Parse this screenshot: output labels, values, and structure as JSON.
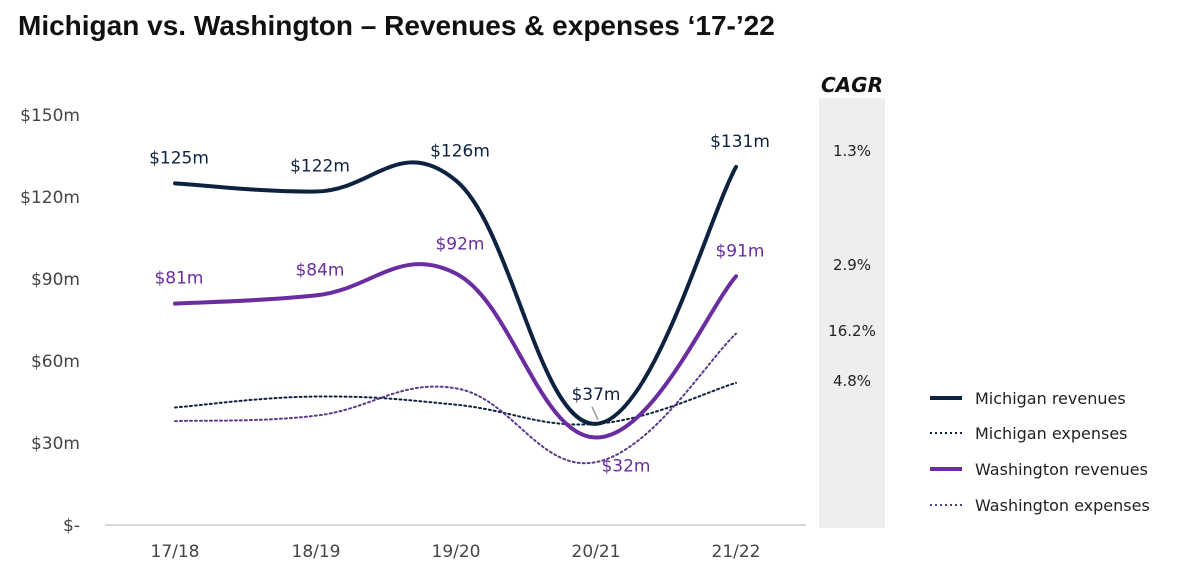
{
  "chart_data": {
    "type": "line",
    "title": "Michigan vs. Washington – Revenues & expenses ‘17-’22",
    "categories": [
      "17/18",
      "18/19",
      "19/20",
      "20/21",
      "21/22"
    ],
    "ylim": [
      0,
      150
    ],
    "yticks": [
      {
        "value": 0,
        "label": "$-"
      },
      {
        "value": 30,
        "label": "$30m"
      },
      {
        "value": 60,
        "label": "$60m"
      },
      {
        "value": 90,
        "label": "$90m"
      },
      {
        "value": 120,
        "label": "$120m"
      },
      {
        "value": 150,
        "label": "$150m"
      }
    ],
    "xlabel": "",
    "ylabel": "",
    "series": [
      {
        "name": "Michigan revenues",
        "style": "solid",
        "color": "#0d2240",
        "values": [
          125,
          122,
          126,
          37,
          131
        ],
        "labels": [
          "$125m",
          "$122m",
          "$126m",
          "$37m",
          "$131m"
        ]
      },
      {
        "name": "Michigan expenses",
        "style": "dotted",
        "color": "#0d2240",
        "values": [
          43,
          47,
          44,
          37,
          52
        ],
        "labels": []
      },
      {
        "name": "Washington revenues",
        "style": "solid",
        "color": "#6a2c9e",
        "values": [
          81,
          84,
          92,
          32,
          91
        ],
        "labels": [
          "$81m",
          "$84m",
          "$92m",
          "$32m",
          "$91m"
        ]
      },
      {
        "name": "Washington expenses",
        "style": "dotted",
        "color": "#5a3a8a",
        "values": [
          38,
          40,
          50,
          23,
          70
        ],
        "labels": []
      }
    ],
    "cagr": {
      "header": "CAGR",
      "values": [
        {
          "series": "Michigan revenues",
          "value": "1.3%"
        },
        {
          "series": "Washington revenues",
          "value": "2.9%"
        },
        {
          "series": "Washington expenses",
          "value": "16.2%"
        },
        {
          "series": "Michigan expenses",
          "value": "4.8%"
        }
      ]
    },
    "legend": {
      "position": "right",
      "entries": [
        "Michigan revenues",
        "Michigan expenses",
        "Washington revenues",
        "Washington expenses"
      ]
    }
  }
}
